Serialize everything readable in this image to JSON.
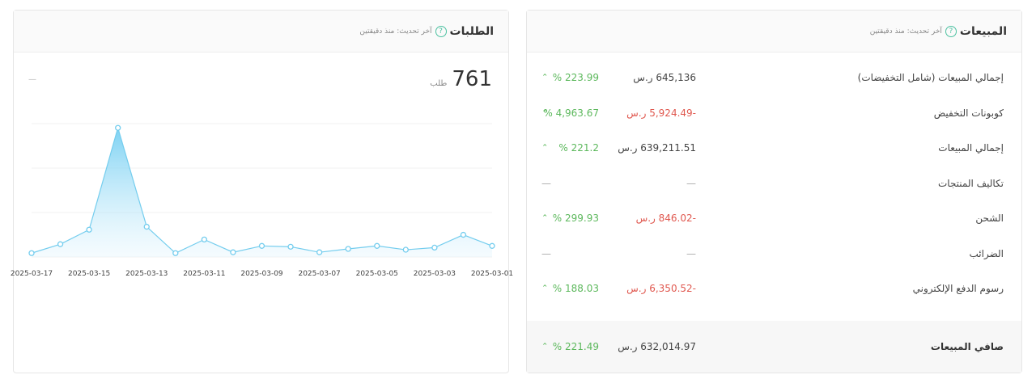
{
  "orders": {
    "title": "الطلبات",
    "updated": "آخر تحديث: منذ دقيقتين",
    "total": "761",
    "unit": "طلب",
    "dash": "—"
  },
  "sales": {
    "title": "المبيعات",
    "updated": "آخر تحديث: منذ دقيقتين",
    "rows": [
      {
        "label": "إجمالي المبيعات (شامل التخفيضات)",
        "value": "645,136 ر.س",
        "change": "223.99 %",
        "negative": false
      },
      {
        "label": "كوبونات التخفيض",
        "value": "-5,924.49 ر.س",
        "change": "4,963.67 %",
        "negative": true
      },
      {
        "label": "إجمالي المبيعات",
        "value": "639,211.51 ر.س",
        "change": "221.2 %",
        "negative": false
      },
      {
        "label": "تكاليف المنتجات",
        "value": "—",
        "change": "—",
        "negative": false
      },
      {
        "label": "الشحن",
        "value": "-846.02 ر.س",
        "change": "299.93 %",
        "negative": true
      },
      {
        "label": "الضرائب",
        "value": "—",
        "change": "—",
        "negative": false
      },
      {
        "label": "رسوم الدفع الإلكتروني",
        "value": "-6,350.52 ر.س",
        "change": "188.03 %",
        "negative": true
      }
    ],
    "net": {
      "label": "صافي المبيعات",
      "value": "632,014.97 ر.س",
      "change": "221.49 %"
    }
  },
  "chart_data": {
    "type": "line",
    "categories": [
      "2025-03-17",
      null,
      "2025-03-15",
      null,
      "2025-03-13",
      null,
      "2025-03-11",
      null,
      "2025-03-09",
      null,
      "2025-03-07",
      null,
      "2025-03-05",
      null,
      "2025-03-03",
      null,
      "2025-03-01"
    ],
    "values": [
      9,
      30,
      64,
      303,
      71,
      9,
      41,
      11,
      26,
      24,
      11,
      19,
      26,
      17,
      22,
      52,
      26
    ],
    "ylim": [
      0,
      330
    ],
    "color": "#74cdee"
  }
}
